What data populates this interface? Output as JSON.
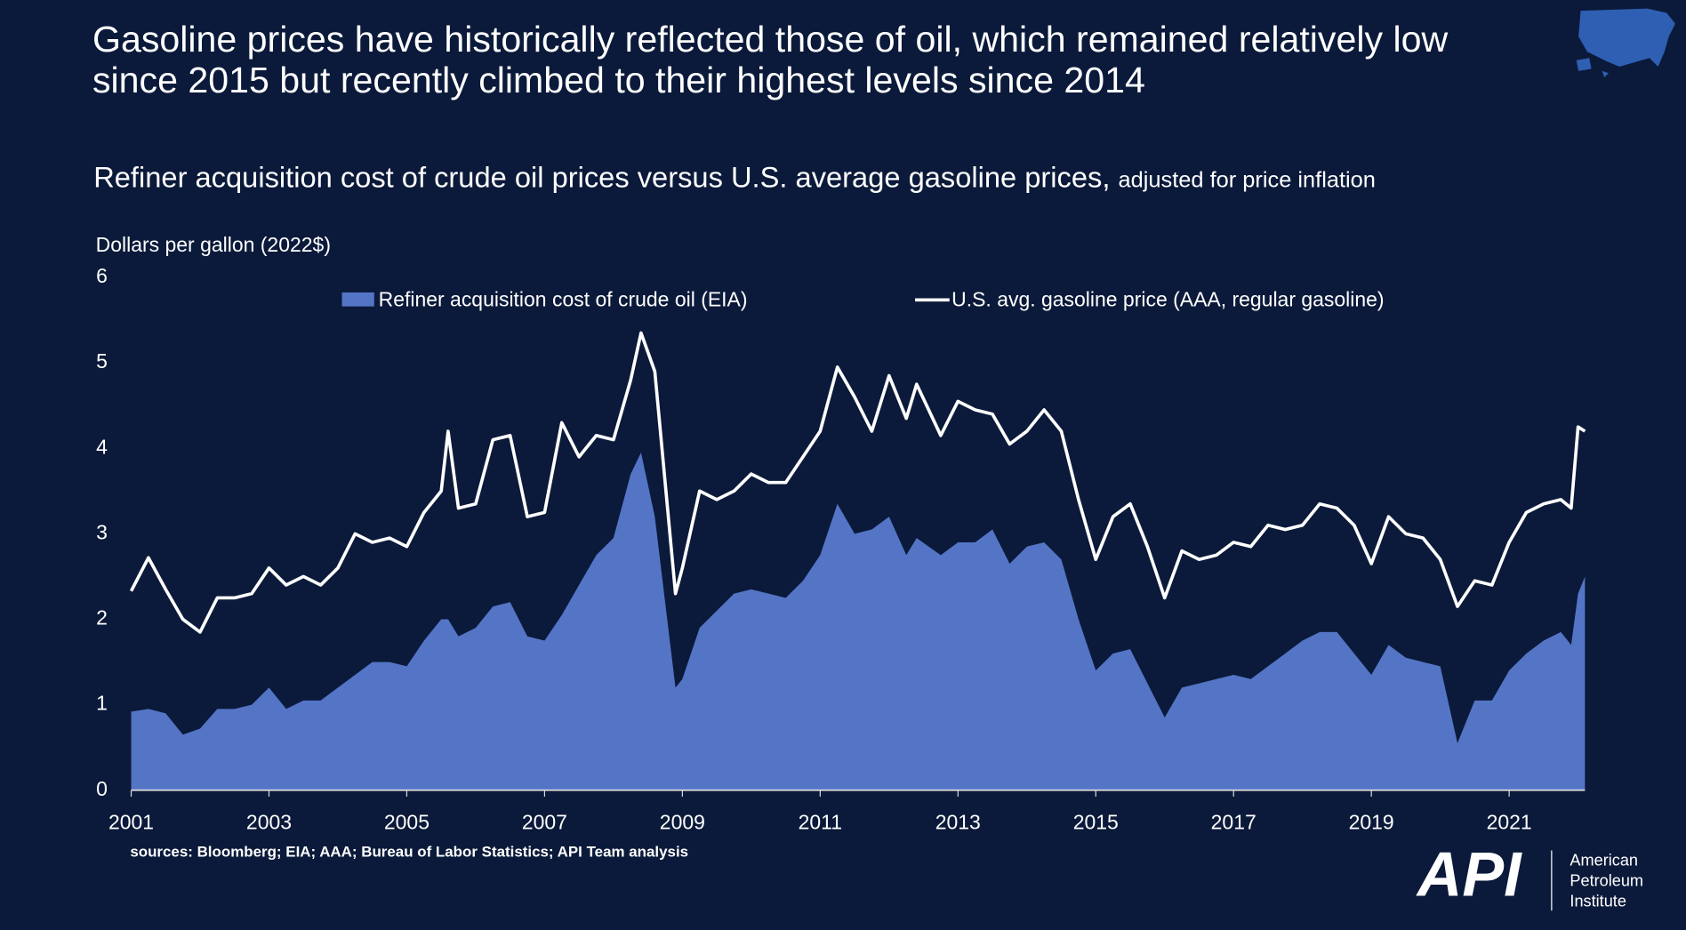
{
  "header": {
    "title": "Gasoline prices have historically reflected those of oil, which remained relatively low since 2015 but recently climbed to their highest levels since 2014",
    "subtitle": "Refiner acquisition cost of crude oil prices versus U.S. average gasoline prices,",
    "subtitle_note": "adjusted for price inflation"
  },
  "chart_data": {
    "type": "area-line",
    "y_label": "Dollars per gallon (2022$)",
    "x": [
      2001,
      2001.25,
      2001.5,
      2001.75,
      2002,
      2002.25,
      2002.5,
      2002.75,
      2003,
      2003.25,
      2003.5,
      2003.75,
      2004,
      2004.25,
      2004.5,
      2004.75,
      2005,
      2005.25,
      2005.5,
      2005.6,
      2005.75,
      2006,
      2006.25,
      2006.5,
      2006.75,
      2007,
      2007.25,
      2007.5,
      2007.75,
      2008,
      2008.25,
      2008.4,
      2008.6,
      2008.9,
      2009,
      2009.25,
      2009.5,
      2009.75,
      2010,
      2010.25,
      2010.5,
      2010.75,
      2011,
      2011.25,
      2011.5,
      2011.75,
      2012,
      2012.25,
      2012.4,
      2012.75,
      2013,
      2013.25,
      2013.5,
      2013.75,
      2014,
      2014.25,
      2014.5,
      2014.75,
      2015,
      2015.25,
      2015.5,
      2015.75,
      2016,
      2016.25,
      2016.5,
      2016.75,
      2017,
      2017.25,
      2017.5,
      2017.75,
      2018,
      2018.25,
      2018.5,
      2018.75,
      2019,
      2019.25,
      2019.5,
      2019.75,
      2020,
      2020.25,
      2020.5,
      2020.75,
      2021,
      2021.25,
      2021.5,
      2021.75,
      2021.9,
      2022,
      2022.1
    ],
    "series": [
      {
        "name": "Refiner acquisition cost of crude oil (EIA)",
        "color": "#5475c6",
        "kind": "area",
        "values": [
          0.92,
          0.95,
          0.9,
          0.65,
          0.72,
          0.95,
          0.95,
          1.0,
          1.2,
          0.95,
          1.05,
          1.05,
          1.2,
          1.35,
          1.5,
          1.5,
          1.45,
          1.75,
          2.0,
          2.0,
          1.8,
          1.9,
          2.15,
          2.2,
          1.8,
          1.75,
          2.05,
          2.4,
          2.75,
          2.95,
          3.7,
          3.95,
          3.2,
          1.2,
          1.3,
          1.9,
          2.1,
          2.3,
          2.35,
          2.3,
          2.25,
          2.45,
          2.75,
          3.35,
          3.0,
          3.05,
          3.2,
          2.75,
          2.95,
          2.75,
          2.9,
          2.9,
          3.05,
          2.65,
          2.85,
          2.9,
          2.7,
          2.0,
          1.4,
          1.6,
          1.65,
          1.25,
          0.85,
          1.2,
          1.25,
          1.3,
          1.35,
          1.3,
          1.45,
          1.6,
          1.75,
          1.85,
          1.85,
          1.6,
          1.35,
          1.7,
          1.55,
          1.5,
          1.45,
          0.55,
          1.05,
          1.05,
          1.4,
          1.6,
          1.75,
          1.85,
          1.7,
          2.3,
          2.5
        ]
      },
      {
        "name": "U.S. avg. gasoline price (AAA, regular gasoline)",
        "color": "#ffffff",
        "kind": "line",
        "values": [
          2.33,
          2.72,
          2.35,
          2.0,
          1.85,
          2.25,
          2.25,
          2.3,
          2.6,
          2.4,
          2.5,
          2.4,
          2.6,
          3.0,
          2.9,
          2.95,
          2.85,
          3.25,
          3.5,
          4.2,
          3.3,
          3.35,
          4.1,
          4.15,
          3.2,
          3.25,
          4.3,
          3.9,
          4.15,
          4.1,
          4.8,
          5.35,
          4.9,
          2.3,
          2.6,
          3.5,
          3.4,
          3.5,
          3.7,
          3.6,
          3.6,
          3.9,
          4.2,
          4.95,
          4.6,
          4.2,
          4.85,
          4.35,
          4.75,
          4.15,
          4.55,
          4.45,
          4.4,
          4.05,
          4.2,
          4.45,
          4.2,
          3.4,
          2.7,
          3.2,
          3.35,
          2.85,
          2.25,
          2.8,
          2.7,
          2.75,
          2.9,
          2.85,
          3.1,
          3.05,
          3.1,
          3.35,
          3.3,
          3.1,
          2.65,
          3.2,
          3.0,
          2.95,
          2.7,
          2.15,
          2.45,
          2.4,
          2.9,
          3.25,
          3.35,
          3.4,
          3.3,
          4.25,
          4.2
        ]
      }
    ],
    "xlim": [
      2001,
      2022.1
    ],
    "xticks": [
      2001,
      2003,
      2005,
      2007,
      2009,
      2011,
      2013,
      2015,
      2017,
      2019,
      2021
    ],
    "ylim": [
      0,
      6
    ],
    "yticks": [
      0,
      1,
      2,
      3,
      4,
      5,
      6
    ],
    "grid": false,
    "legend": "top"
  },
  "source": "sources: Bloomberg; EIA; AAA; Bureau of Labor Statistics; API Team analysis",
  "logo": {
    "mark": "API",
    "lines": [
      "American",
      "Petroleum",
      "Institute"
    ]
  }
}
